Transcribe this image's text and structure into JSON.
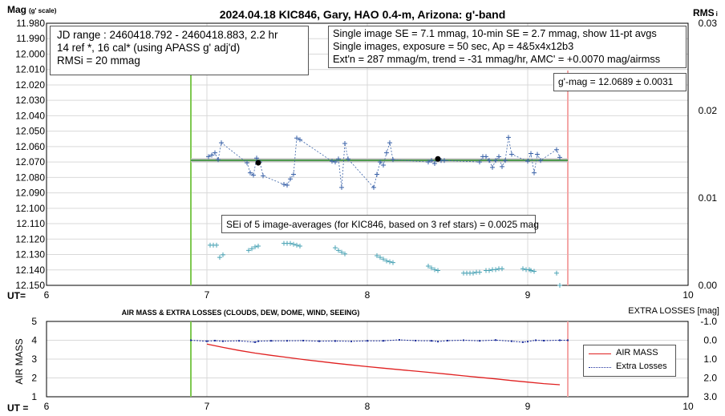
{
  "title": "2024.04.18 KIC846, Gary, HAO 0.4-m, Arizona: g'-band",
  "top_panel": {
    "ylabel_main": "Mag",
    "ylabel_sub": "(g' scale)",
    "y2label_main": "RMS",
    "y2label_sub": "i",
    "ut_label": "UT=",
    "y_ticks": [
      "11.980",
      "11.990",
      "12.000",
      "12.010",
      "12.020",
      "12.030",
      "12.040",
      "12.050",
      "12.060",
      "12.070",
      "12.080",
      "12.090",
      "12.100",
      "12.110",
      "12.120",
      "12.130",
      "12.140",
      "12.150"
    ],
    "y2_ticks": [
      "0.03",
      "0.02",
      "0.01",
      "0.00"
    ],
    "x_ticks": [
      "6",
      "7",
      "8",
      "9",
      "10"
    ]
  },
  "info_boxes": {
    "jd": [
      "JD range : 2460418.792 - 2460418.883, 2.2  hr",
      "14 ref *, 16 cal* (using APASS g' adj'd)",
      "RMSi = 20 mmag"
    ],
    "se": [
      "Single image SE = 7.1 mmag, 10-min SE = 2.7 mmag, show  11-pt avgs",
      "Single images, exposure = 50 sec, Ap = 4&5x4x12b3",
      "Ext'n = 287 mmag/m, trend =  -31 mmag/hr, AMC' = +0.0070 mag/airmss"
    ],
    "gmag": "g'-mag = 12.0689 ± 0.0031",
    "sei": "SEi of 5 image-averages (for KIC846, based on 3 ref stars) = 0.0025 mag"
  },
  "bottom_panel": {
    "title": "AIR MASS & EXTRA LOSSES (CLOUDS, DEW, DOME, WIND, SEEING)",
    "ylabel": "AIR MASS",
    "y2label": "EXTRA LOSSES [mag]",
    "ut_label": "UT =",
    "y_ticks": [
      "5",
      "4",
      "3",
      "2",
      "1"
    ],
    "y2_ticks": [
      "-1.0",
      "0.0",
      "1.0",
      "2.0",
      "3.0"
    ],
    "x_ticks": [
      "6",
      "7",
      "8",
      "9",
      "10"
    ],
    "legend": {
      "airmass": "AIR MASS",
      "extra": "Extra Losses"
    }
  },
  "colors": {
    "green_line": "#7ec850",
    "pink_line": "#f4a6a6",
    "mag_points": "#3a62a8",
    "rms_points": "#4aa3b5",
    "airmass": "#e02020",
    "extra": "#1c2e9c",
    "mean_band": "#bfbfbf",
    "mean_line": "#4f9a4f"
  },
  "chart_data": [
    {
      "type": "scatter",
      "title": "2024.04.18 KIC846, Gary, HAO 0.4-m, Arizona: g'-band",
      "xlabel": "UT",
      "ylabel": "Mag (g' scale)",
      "y2label": "RMS i",
      "xlim": [
        6,
        10
      ],
      "ylim": [
        12.15,
        11.98
      ],
      "y2lim": [
        0.0,
        0.03
      ],
      "grid": true,
      "markers_ut": {
        "start": 6.9,
        "end": 9.25
      },
      "mean_mag": 12.0689,
      "series": [
        {
          "name": "mag",
          "x": [
            7.01,
            7.03,
            7.05,
            7.07,
            7.09,
            7.25,
            7.27,
            7.29,
            7.31,
            7.33,
            7.35,
            7.48,
            7.5,
            7.52,
            7.54,
            7.56,
            7.58,
            7.78,
            7.8,
            7.82,
            7.84,
            7.86,
            7.88,
            8.04,
            8.06,
            8.08,
            8.1,
            8.12,
            8.14,
            8.16,
            8.38,
            8.4,
            8.42,
            8.44,
            8.46,
            8.48,
            8.7,
            8.72,
            8.74,
            8.76,
            8.78,
            8.8,
            8.82,
            8.84,
            8.86,
            8.88,
            8.9,
            9.0,
            9.02,
            9.04,
            9.06,
            9.08,
            9.18,
            9.2
          ],
          "y": [
            12.0665,
            12.0655,
            12.064,
            12.0685,
            12.0575,
            12.0705,
            12.077,
            12.0785,
            12.0675,
            12.07,
            12.079,
            12.0845,
            12.085,
            12.081,
            12.078,
            12.0545,
            12.0555,
            12.0695,
            12.07,
            12.068,
            12.0865,
            12.058,
            12.068,
            12.0865,
            12.078,
            12.07,
            12.072,
            12.064,
            12.0575,
            12.0685,
            12.07,
            12.069,
            12.071,
            12.068,
            12.069,
            12.069,
            12.07,
            12.0665,
            12.0665,
            12.069,
            12.0735,
            12.069,
            12.0665,
            12.073,
            12.069,
            12.054,
            12.065,
            12.0695,
            12.0645,
            12.077,
            12.065,
            12.069,
            12.062,
            12.067
          ]
        },
        {
          "name": "avg",
          "x": [
            7.32,
            8.44
          ],
          "y": [
            12.0705,
            12.068
          ]
        },
        {
          "name": "RMS i",
          "axis": "y2",
          "x": [
            7.02,
            7.04,
            7.06,
            7.08,
            7.1,
            7.26,
            7.28,
            7.3,
            7.32,
            7.48,
            7.5,
            7.52,
            7.54,
            7.56,
            7.58,
            7.8,
            7.82,
            7.84,
            7.86,
            8.06,
            8.08,
            8.1,
            8.12,
            8.14,
            8.16,
            8.38,
            8.4,
            8.42,
            8.44,
            8.6,
            8.62,
            8.64,
            8.66,
            8.68,
            8.7,
            8.74,
            8.76,
            8.78,
            8.8,
            8.82,
            8.84,
            8.97,
            8.99,
            9.01,
            9.02,
            9.04,
            9.18,
            9.2
          ],
          "y": [
            0.0046,
            0.0046,
            0.0046,
            0.0032,
            0.0035,
            0.004,
            0.0042,
            0.0044,
            0.0045,
            0.0048,
            0.0048,
            0.0048,
            0.0047,
            0.0046,
            0.0045,
            0.0043,
            0.004,
            0.0038,
            0.0036,
            0.0034,
            0.0032,
            0.003,
            0.0028,
            0.0027,
            0.0026,
            0.0022,
            0.002,
            0.0018,
            0.0017,
            0.0014,
            0.0014,
            0.0014,
            0.0014,
            0.0015,
            0.0015,
            0.0017,
            0.0017,
            0.0018,
            0.0018,
            0.0019,
            0.0019,
            0.0019,
            0.0018,
            0.0018,
            0.0017,
            0.0016,
            0.0014,
            0.0
          ]
        }
      ]
    },
    {
      "type": "line",
      "title": "AIR MASS & EXTRA LOSSES (CLOUDS, DEW, DOME, WIND, SEEING)",
      "xlabel": "UT",
      "ylabel": "AIR MASS",
      "y2label": "EXTRA LOSSES [mag]",
      "xlim": [
        6,
        10
      ],
      "ylim": [
        1,
        5
      ],
      "y2lim": [
        3.0,
        -1.0
      ],
      "legend": "right",
      "series": [
        {
          "name": "AIR MASS",
          "x": [
            7.0,
            7.1,
            7.2,
            7.3,
            7.4,
            7.5,
            7.6,
            7.7,
            7.8,
            7.9,
            8.0,
            8.1,
            8.2,
            8.3,
            8.4,
            8.5,
            8.6,
            8.7,
            8.8,
            8.9,
            9.0,
            9.1,
            9.2
          ],
          "y": [
            3.8,
            3.62,
            3.46,
            3.32,
            3.2,
            3.09,
            2.98,
            2.88,
            2.78,
            2.69,
            2.6,
            2.52,
            2.44,
            2.36,
            2.28,
            2.2,
            2.11,
            2.03,
            1.95,
            1.86,
            1.78,
            1.7,
            1.64
          ]
        },
        {
          "name": "Extra Losses",
          "axis": "y2",
          "x": [
            6.9,
            7.0,
            7.05,
            7.1,
            7.2,
            7.3,
            7.32,
            7.4,
            7.5,
            7.6,
            7.7,
            7.8,
            7.9,
            8.0,
            8.1,
            8.2,
            8.3,
            8.4,
            8.44,
            8.5,
            8.6,
            8.7,
            8.8,
            8.9,
            8.97,
            9.0,
            9.05,
            9.1,
            9.2,
            9.25
          ],
          "y": [
            0.0,
            0.05,
            0.02,
            0.05,
            0.03,
            0.1,
            0.05,
            0.03,
            0.03,
            0.02,
            0.05,
            0.04,
            0.06,
            0.03,
            0.03,
            -0.02,
            0.02,
            0.03,
            0.07,
            0.02,
            0.0,
            0.03,
            -0.01,
            0.05,
            0.1,
            0.07,
            0.0,
            0.02,
            0.0,
            0.0
          ]
        }
      ]
    }
  ]
}
